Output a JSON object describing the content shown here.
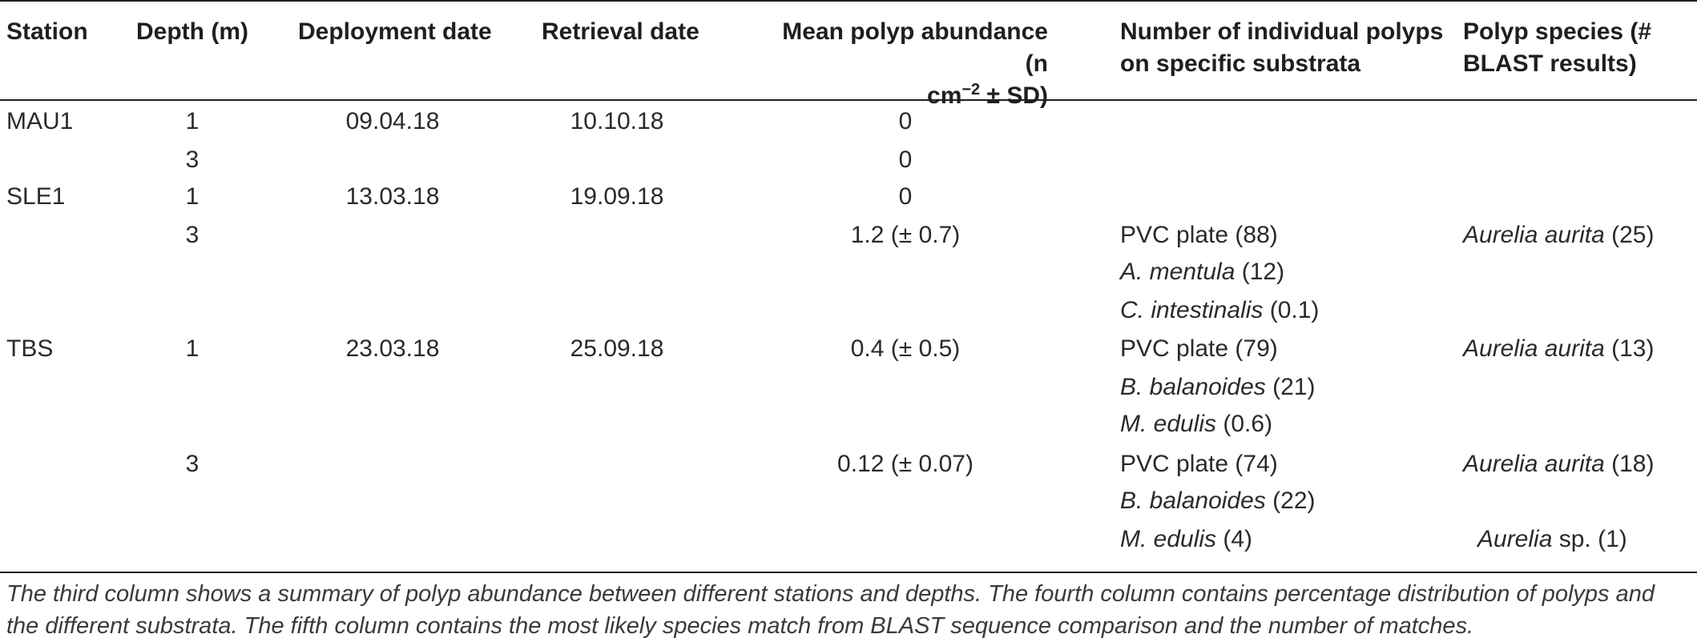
{
  "table": {
    "headers": {
      "station": "Station",
      "depth": "Depth (m)",
      "deployment": "Deployment date",
      "retrieval": "Retrieval date",
      "abundance_line1": "Mean polyp abundance (n",
      "abundance_line2_pre": "cm",
      "abundance_line2_sup": "−2",
      "abundance_line2_post": " ± SD)",
      "substrata_line1": "Number of individual polyps",
      "substrata_line2": "on specific substrata",
      "species_line1": "Polyp species (#",
      "species_line2": "BLAST results)"
    },
    "rows": {
      "r1": {
        "station": "MAU1",
        "depth": "1",
        "deployment": "09.04.18",
        "retrieval": "10.10.18",
        "abundance": "0"
      },
      "r2": {
        "depth": "3",
        "abundance": "0"
      },
      "r3": {
        "station": "SLE1",
        "depth": "1",
        "deployment": "13.03.18",
        "retrieval": "19.09.18",
        "abundance": "0"
      },
      "r4": {
        "depth": "3",
        "abundance": "1.2 (± 0.7)",
        "sub1_name": "PVC plate",
        "sub1_val": " (88)",
        "sub2_name": "A. mentula",
        "sub2_val": " (12)",
        "sub3_name": "C. intestinalis",
        "sub3_val": " (0.1)",
        "sp1_name": "Aurelia aurita",
        "sp1_val": " (25)"
      },
      "r5": {
        "station": "TBS",
        "depth": "1",
        "deployment": "23.03.18",
        "retrieval": "25.09.18",
        "abundance": "0.4 (± 0.5)",
        "sub1_name": "PVC plate",
        "sub1_val": " (79)",
        "sub2_name": "B. balanoides",
        "sub2_val": " (21)",
        "sub3_name": "M. edulis",
        "sub3_val": " (0.6)",
        "sp1_name": "Aurelia aurita",
        "sp1_val": " (13)"
      },
      "r6": {
        "depth": "3",
        "abundance": "0.12 (± 0.07)",
        "sub1_name": "PVC plate",
        "sub1_val": " (74)",
        "sub2_name": "B. balanoides",
        "sub2_val": " (22)",
        "sub3_name": "M. edulis",
        "sub3_val": " (4)",
        "sp1_name": "Aurelia aurita",
        "sp1_val": " (18)",
        "sp2_name": "Aurelia",
        "sp2_val": " sp. (1)"
      }
    }
  },
  "caption": "The third column shows a summary of polyp abundance between different stations and depths. The fourth column contains percentage distribution of polyps and the different substrata. The fifth column contains the most likely species match from BLAST sequence comparison and the number of matches."
}
